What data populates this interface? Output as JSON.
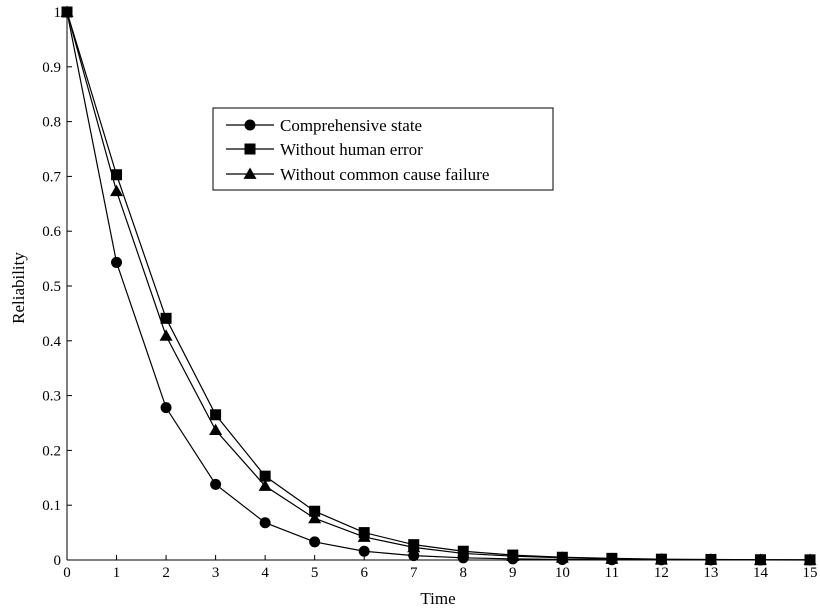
{
  "chart_data": {
    "type": "line",
    "title": "",
    "xlabel": "Time",
    "ylabel": "Reliability",
    "xlim": [
      0,
      15
    ],
    "ylim": [
      0,
      1
    ],
    "xticks": [
      "0",
      "1",
      "2",
      "3",
      "4",
      "5",
      "6",
      "7",
      "8",
      "9",
      "10",
      "11",
      "12",
      "13",
      "14",
      "15"
    ],
    "yticks": [
      "0",
      "0.1",
      "0.2",
      "0.3",
      "0.4",
      "0.5",
      "0.6",
      "0.7",
      "0.8",
      "0.9",
      "1"
    ],
    "x": [
      0,
      1,
      2,
      3,
      4,
      5,
      6,
      7,
      8,
      9,
      10,
      11,
      12,
      13,
      14,
      15
    ],
    "grid": false,
    "legend_position": "top-center",
    "series": [
      {
        "name": "Comprehensive state",
        "marker": "circle",
        "values": [
          1,
          0.543,
          0.278,
          0.138,
          0.068,
          0.033,
          0.016,
          0.008,
          0.004,
          0.002,
          0.001,
          0.0005,
          0.0002,
          0.0001,
          0.0001,
          0.0
        ]
      },
      {
        "name": "Without human error",
        "marker": "square",
        "values": [
          1,
          0.703,
          0.441,
          0.265,
          0.153,
          0.089,
          0.05,
          0.028,
          0.016,
          0.009,
          0.005,
          0.003,
          0.0015,
          0.001,
          0.0005,
          0.0003
        ]
      },
      {
        "name": "Without common cause failure",
        "marker": "triangle",
        "values": [
          1,
          0.673,
          0.409,
          0.237,
          0.135,
          0.076,
          0.042,
          0.023,
          0.012,
          0.007,
          0.004,
          0.002,
          0.001,
          0.0006,
          0.0003,
          0.0002
        ]
      }
    ],
    "colors": {
      "line": "#000000",
      "marker": "#000000",
      "axis": "#000000"
    }
  }
}
